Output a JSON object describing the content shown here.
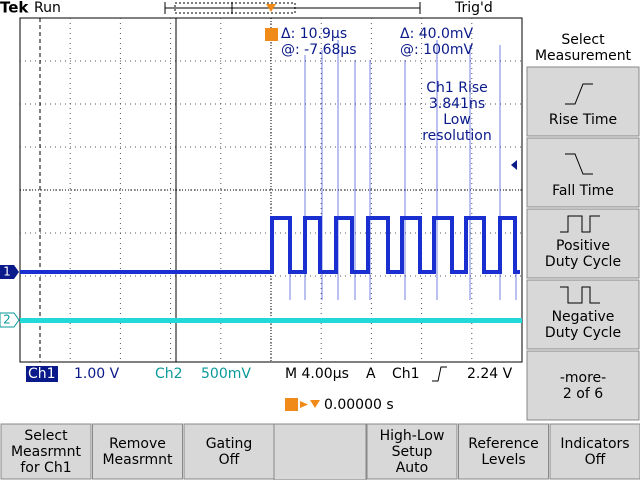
{
  "header": {
    "brand": "Tek",
    "state": "Run",
    "trigger_status": "Trig'd"
  },
  "cursors": {
    "time_delta": "Δ:   10.9µs",
    "time_position": "@:  -7.68µs",
    "volt_delta": "Δ:   40.0mV",
    "volt_position": "@:    100mV"
  },
  "measurement": {
    "lines": [
      "Ch1 Rise",
      "3.841ns",
      "Low",
      "resolution"
    ]
  },
  "side_menu": {
    "title": [
      "Select",
      "Measurement"
    ],
    "buttons": [
      {
        "lines": [
          "Rise Time"
        ]
      },
      {
        "lines": [
          "Fall Time"
        ]
      },
      {
        "lines": [
          "Positive",
          "Duty Cycle"
        ]
      },
      {
        "lines": [
          "Negative",
          "Duty Cycle"
        ]
      },
      {
        "lines": [
          "-more-",
          "2 of 6"
        ]
      }
    ]
  },
  "channel_markers": [
    "1",
    "2"
  ],
  "status": {
    "ch1": "Ch1",
    "ch1_scale": "1.00 V",
    "ch2": "Ch2",
    "ch2_scale": "500mV",
    "timebase": "M 4.00µs",
    "trigger_mode": "A",
    "trigger_source": "Ch1",
    "trigger_level": "2.24 V",
    "trigger_position": "0.00000 s"
  },
  "bottom_menu": [
    {
      "lines": [
        "Select",
        "Measrmnt",
        "for Ch1"
      ]
    },
    {
      "lines": [
        "Remove",
        "Measrmnt"
      ]
    },
    {
      "lines": [
        "Gating",
        "Off"
      ]
    },
    {
      "lines": [
        "High-Low",
        "Setup",
        "Auto"
      ]
    },
    {
      "lines": [
        "Reference",
        "Levels"
      ]
    },
    {
      "lines": [
        "Indicators",
        "Off"
      ]
    }
  ]
}
